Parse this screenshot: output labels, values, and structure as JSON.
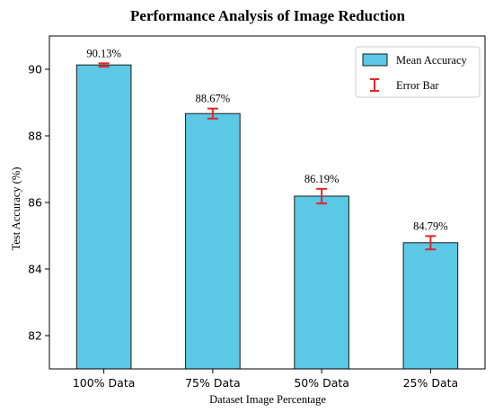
{
  "chart_data": {
    "type": "bar",
    "title": "Performance Analysis of Image Reduction",
    "xlabel": "Dataset Image Percentage",
    "ylabel": "Test Accuracy (%)",
    "categories": [
      "100% Data",
      "75% Data",
      "50% Data",
      "25% Data"
    ],
    "values": [
      90.13,
      88.67,
      86.19,
      84.79
    ],
    "errors": [
      0.05,
      0.15,
      0.22,
      0.2
    ],
    "data_labels": [
      "90.13%",
      "88.67%",
      "86.19%",
      "84.79%"
    ],
    "ylim": [
      81,
      91
    ],
    "yticks": [
      82,
      84,
      86,
      88,
      90
    ],
    "grid": false,
    "legend": {
      "position": "top-right",
      "entries": [
        {
          "label": "Mean Accuracy",
          "kind": "bar"
        },
        {
          "label": "Error Bar",
          "kind": "errorbar"
        }
      ]
    },
    "colors": {
      "bar_fill": "#5bc8e6",
      "bar_edge": "#1a1a1a",
      "error_bar": "#e0262b"
    }
  }
}
